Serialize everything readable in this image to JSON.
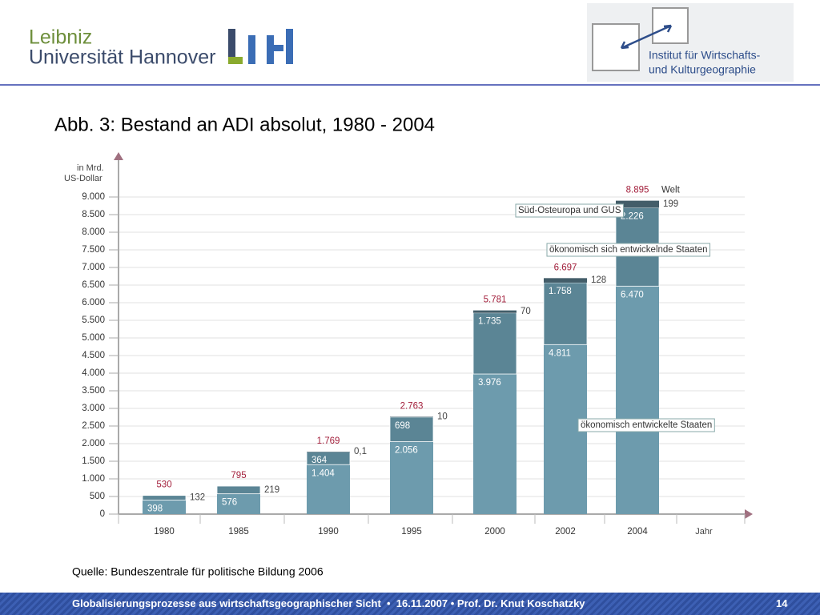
{
  "header": {
    "university": [
      "Leibniz",
      "Universität Hannover"
    ],
    "institute": [
      "Institut für Wirtschafts-",
      "und Kulturgeographie"
    ]
  },
  "chart_data": {
    "type": "stacked_bar",
    "title": "Abb. 3: Bestand an ADI absolut, 1980 - 2004",
    "ylabel": [
      "in Mrd.",
      "US-Dollar"
    ],
    "xlabel": "Jahr",
    "categories": [
      "1980",
      "1985",
      "1990",
      "1995",
      "2000",
      "2002",
      "2004"
    ],
    "series": [
      {
        "name": "ökonomisch entwickelte Staaten",
        "color": "#6d9bad",
        "values": [
          398,
          576,
          1404,
          2056,
          3976,
          4811,
          6470
        ],
        "value_labels": [
          "398",
          "576",
          "1.404",
          "2.056",
          "3.976",
          "4.811",
          "6.470"
        ]
      },
      {
        "name": "ökonomisch sich entwickelnde Staaten",
        "color": "#5b8595",
        "values": [
          132,
          219,
          364,
          698,
          1735,
          1758,
          2226
        ],
        "value_labels": [
          "132",
          "219",
          "364",
          "698",
          "1.735",
          "1.758",
          "2.226"
        ]
      },
      {
        "name": "Süd-Osteuropa und GUS",
        "color": "#435d69",
        "values": [
          null,
          null,
          0.1,
          10,
          70,
          128,
          199
        ],
        "value_labels": [
          null,
          null,
          "0,1",
          "10",
          "70",
          "128",
          "199"
        ]
      }
    ],
    "totals": {
      "name": "Welt",
      "color": "#a3203c",
      "values": [
        530,
        795,
        1769,
        2763,
        5781,
        6697,
        8895
      ],
      "value_labels": [
        "530",
        "795",
        "1.769",
        "2.763",
        "5.781",
        "6.697",
        "8.895"
      ]
    },
    "ylim": [
      0,
      10000
    ],
    "yticks": [
      0,
      500,
      {
        "value": 1000,
        "label": "1.000"
      },
      {
        "value": 1500,
        "label": "1.500"
      },
      {
        "value": 2000,
        "label": "2.000"
      },
      {
        "value": 2500,
        "label": "2.500"
      },
      {
        "value": 3000,
        "label": "3.000"
      },
      {
        "value": 3500,
        "label": "3.500"
      },
      {
        "value": 4000,
        "label": "4.000"
      },
      {
        "value": 4500,
        "label": "4.500"
      },
      {
        "value": 5000,
        "label": "5.000"
      },
      {
        "value": 5500,
        "label": "5.500"
      },
      {
        "value": 6000,
        "label": "6.000"
      },
      {
        "value": 6500,
        "label": "6.500"
      },
      {
        "value": 7000,
        "label": "7.000"
      },
      {
        "value": 7500,
        "label": "7.500"
      },
      {
        "value": 8000,
        "label": "8.000"
      },
      {
        "value": 8500,
        "label": "8.500"
      },
      {
        "value": 9000,
        "label": "9.000"
      }
    ],
    "grid": true
  },
  "source": "Quelle: Bundeszentrale für politische Bildung 2006",
  "footer": {
    "text": "Globalisierungsprozesse aus wirtschaftsgeographischer Sicht  •  16.11.2007 • Prof. Dr. Knut Koschatzky",
    "page": "14"
  }
}
